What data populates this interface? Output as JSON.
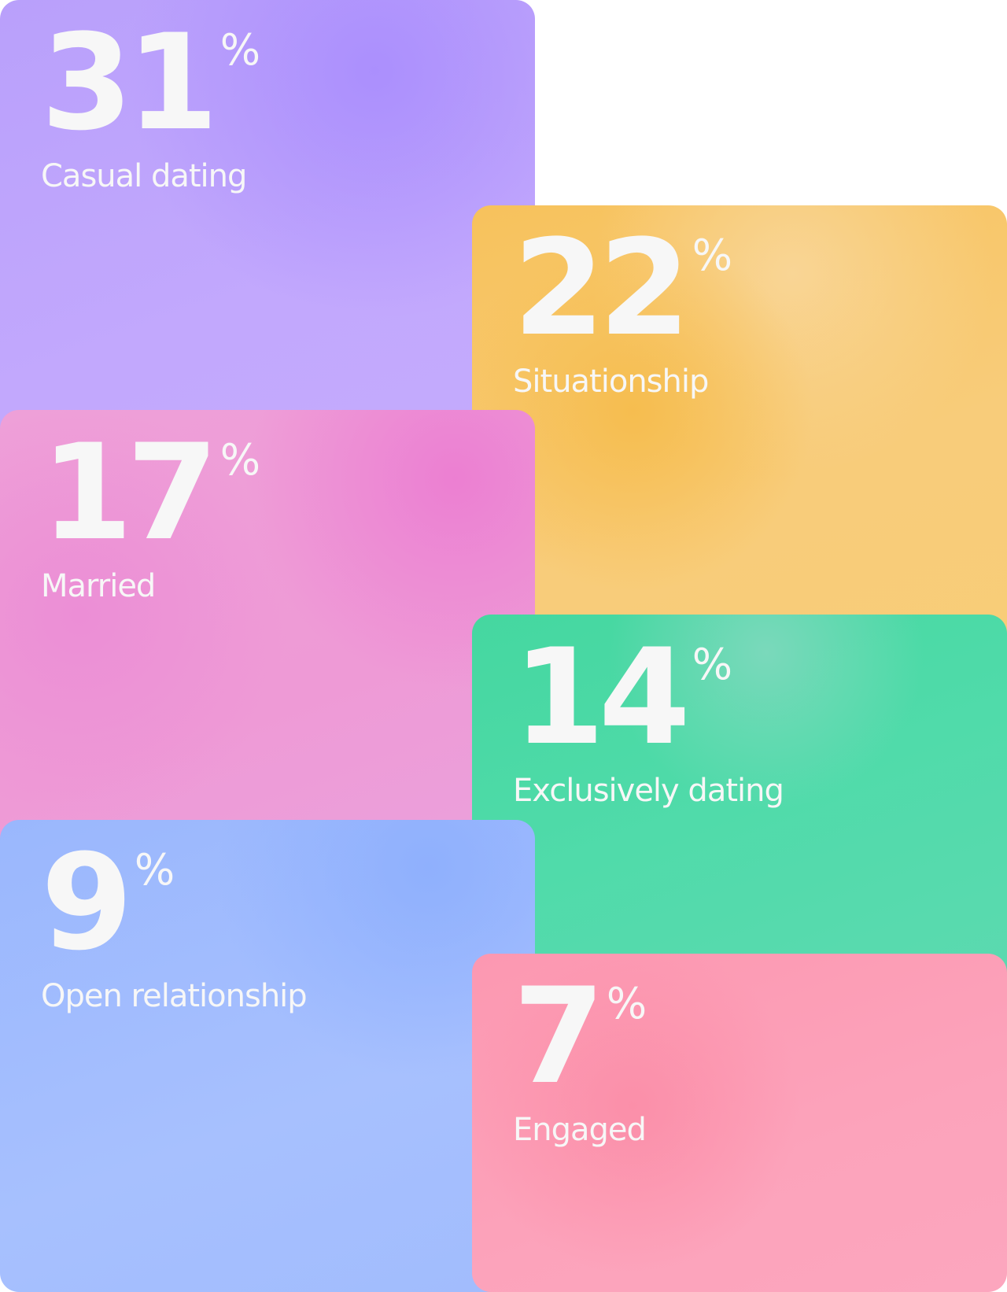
{
  "unit": "%",
  "cards": [
    {
      "value": 31,
      "label": "Casual dating"
    },
    {
      "value": 22,
      "label": "Situationship"
    },
    {
      "value": 17,
      "label": "Married"
    },
    {
      "value": 14,
      "label": "Exclusively dating"
    },
    {
      "value": 9,
      "label": "Open relationship"
    },
    {
      "value": 7,
      "label": "Engaged"
    }
  ]
}
